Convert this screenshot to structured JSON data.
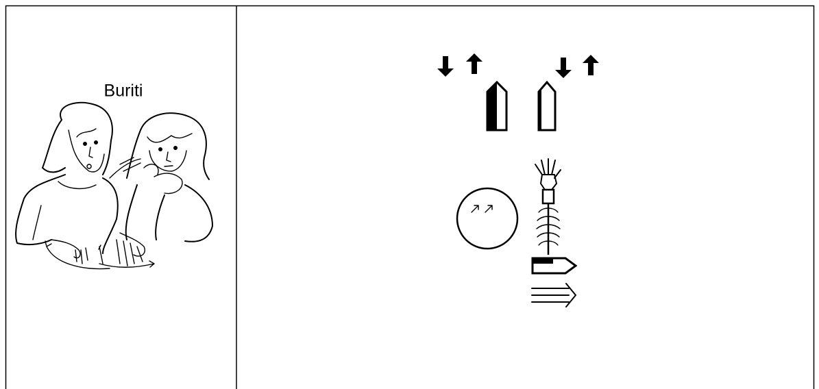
{
  "cell": {
    "caption": "Buriti"
  }
}
